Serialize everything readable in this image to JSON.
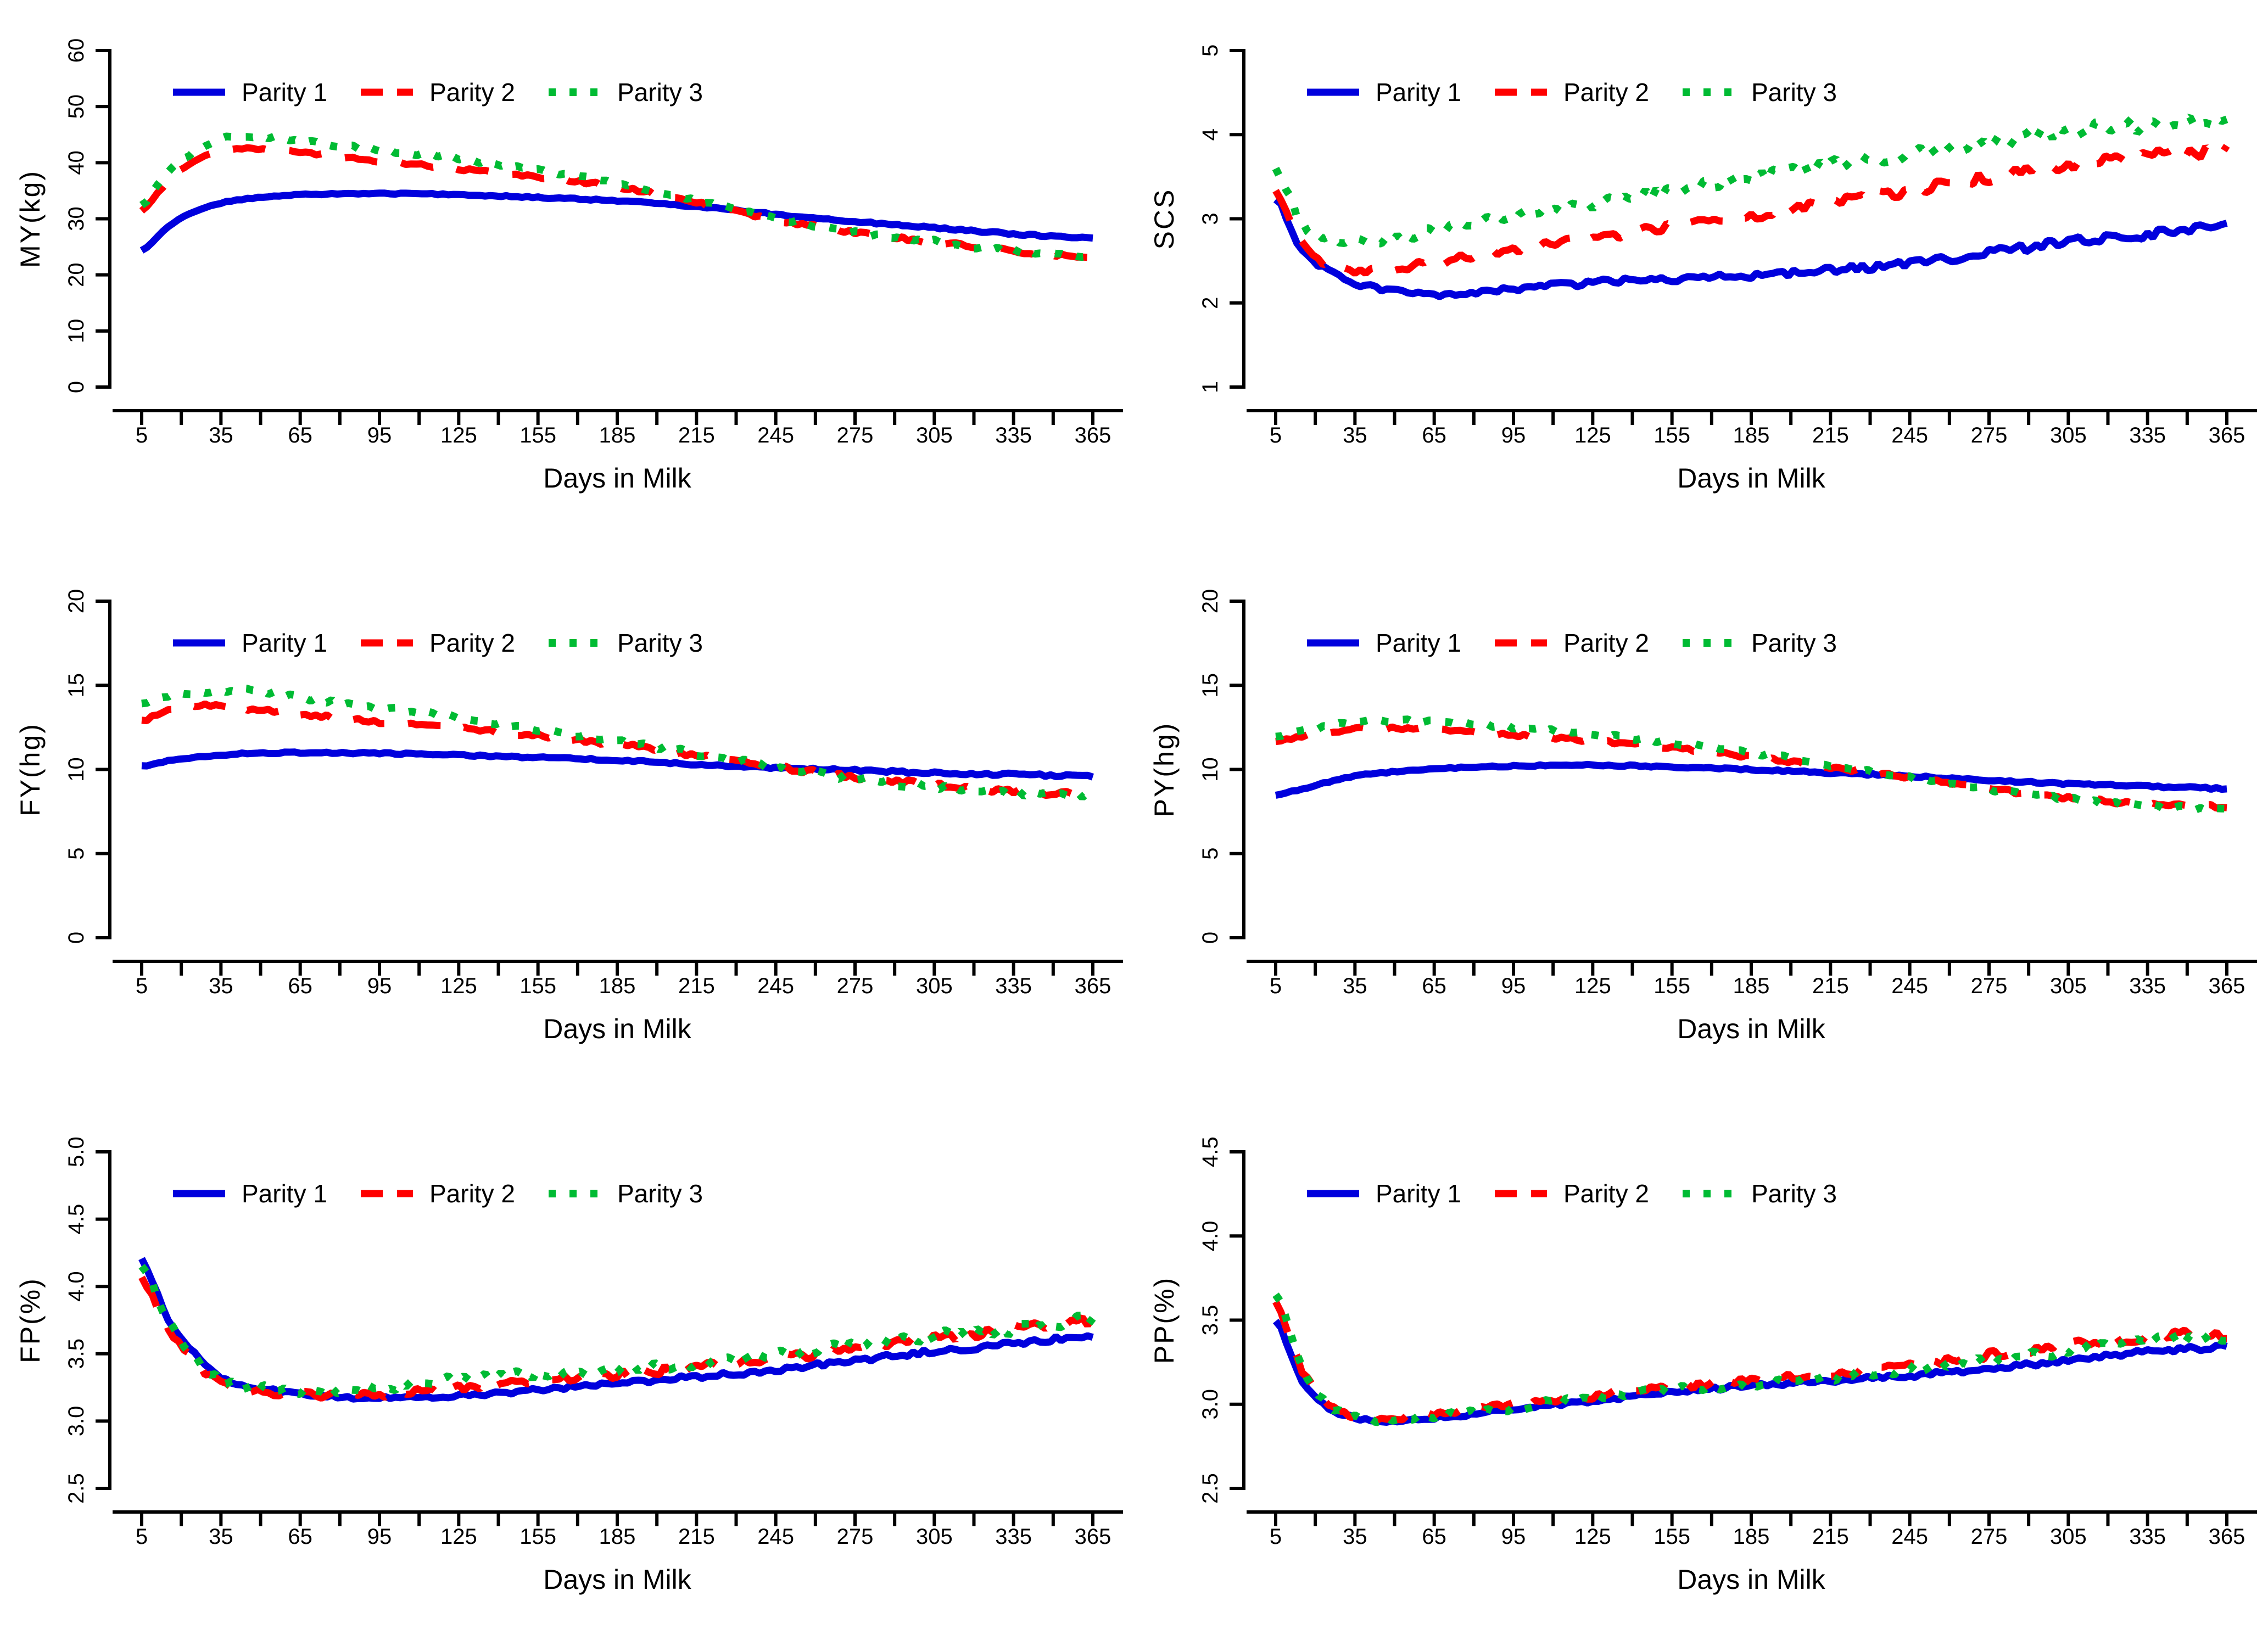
{
  "page": {
    "background": "#ffffff"
  },
  "colors": {
    "parity1": "#0000dd",
    "parity2": "#ff0000",
    "parity3": "#00bb33",
    "axis": "#000000",
    "text": "#000000"
  },
  "legend": {
    "labels": [
      "Parity 1",
      "Parity 2",
      "Parity 3"
    ],
    "position": "top-left-inside"
  },
  "chart_data": [
    {
      "id": "MY",
      "type": "line",
      "title": "",
      "xlabel": "Days in Milk",
      "ylabel": "MY(kg)",
      "ylim": [
        0,
        60
      ],
      "yticks": [
        "0",
        "10",
        "20",
        "30",
        "40",
        "50",
        "60"
      ],
      "x_axis": {
        "range": [
          5,
          365
        ],
        "major_ticks": [
          5,
          35,
          65,
          95,
          125,
          155,
          185,
          215,
          245,
          275,
          305,
          335,
          365
        ],
        "minor_step": 15
      },
      "grid": false,
      "x_points": [
        5,
        15,
        25,
        35,
        45,
        65,
        95,
        125,
        155,
        185,
        215,
        245,
        275,
        305,
        335,
        365
      ],
      "series": [
        {
          "name": "Parity 1",
          "color_key": "parity1",
          "style": "solid",
          "values": [
            24.3,
            28.6,
            31.3,
            32.8,
            33.6,
            34.3,
            34.5,
            34.3,
            33.8,
            33.2,
            32.2,
            30.8,
            29.5,
            28.4,
            27.3,
            26.6
          ],
          "noise": [
            0.08,
            0.18
          ]
        },
        {
          "name": "Parity 2",
          "color_key": "parity2",
          "style": "dashed",
          "values": [
            31.5,
            36.8,
            40.3,
            42.2,
            42.5,
            41.8,
            40.3,
            38.9,
            37.4,
            35.7,
            32.9,
            29.8,
            27.6,
            25.8,
            24.3,
            23.2
          ],
          "noise": [
            0.2,
            0.4
          ]
        },
        {
          "name": "Parity 3",
          "color_key": "parity3",
          "style": "dotted",
          "values": [
            32.5,
            38.3,
            42.0,
            44.2,
            44.8,
            43.8,
            42.3,
            40.7,
            38.7,
            36.3,
            33.3,
            30.1,
            27.7,
            25.9,
            24.2,
            23.3
          ],
          "noise": [
            0.25,
            0.45
          ]
        }
      ]
    },
    {
      "id": "SCS",
      "type": "line",
      "title": "",
      "xlabel": "Days in Milk",
      "ylabel": "SCS",
      "ylim": [
        1,
        5
      ],
      "yticks": [
        "1",
        "2",
        "3",
        "4",
        "5"
      ],
      "x_axis": {
        "range": [
          5,
          365
        ],
        "major_ticks": [
          5,
          35,
          65,
          95,
          125,
          155,
          185,
          215,
          245,
          275,
          305,
          335,
          365
        ],
        "minor_step": 15
      },
      "grid": false,
      "x_points": [
        5,
        15,
        25,
        35,
        45,
        65,
        95,
        125,
        155,
        185,
        215,
        245,
        275,
        305,
        335,
        365
      ],
      "series": [
        {
          "name": "Parity 1",
          "color_key": "parity1",
          "style": "solid",
          "values": [
            3.25,
            2.62,
            2.38,
            2.24,
            2.16,
            2.1,
            2.17,
            2.24,
            2.29,
            2.33,
            2.39,
            2.47,
            2.59,
            2.72,
            2.82,
            2.93
          ],
          "noise": [
            0.025,
            0.06
          ]
        },
        {
          "name": "Parity 2",
          "color_key": "parity2",
          "style": "dashed",
          "values": [
            3.3,
            2.7,
            2.45,
            2.37,
            2.39,
            2.49,
            2.63,
            2.77,
            2.91,
            3.04,
            3.19,
            3.34,
            3.49,
            3.63,
            3.76,
            3.8
          ],
          "noise": [
            0.035,
            0.08
          ]
        },
        {
          "name": "Parity 3",
          "color_key": "parity3",
          "style": "dotted",
          "values": [
            3.6,
            2.95,
            2.78,
            2.76,
            2.74,
            2.87,
            3.03,
            3.18,
            3.33,
            3.49,
            3.63,
            3.76,
            3.9,
            4.04,
            4.12,
            4.18
          ],
          "noise": [
            0.05,
            0.1
          ]
        }
      ]
    },
    {
      "id": "FY",
      "type": "line",
      "title": "",
      "xlabel": "Days in Milk",
      "ylabel": "FY(hg)",
      "ylim": [
        0,
        20
      ],
      "yticks": [
        "0",
        "5",
        "10",
        "15",
        "20"
      ],
      "x_axis": {
        "range": [
          5,
          365
        ],
        "major_ticks": [
          5,
          35,
          65,
          95,
          125,
          155,
          185,
          215,
          245,
          275,
          305,
          335,
          365
        ],
        "minor_step": 15
      },
      "grid": false,
      "x_points": [
        5,
        15,
        25,
        35,
        45,
        65,
        95,
        125,
        155,
        185,
        215,
        245,
        275,
        305,
        335,
        365
      ],
      "series": [
        {
          "name": "Parity 1",
          "color_key": "parity1",
          "style": "solid",
          "values": [
            10.2,
            10.5,
            10.7,
            10.85,
            10.95,
            11.0,
            10.95,
            10.85,
            10.7,
            10.55,
            10.3,
            10.1,
            9.95,
            9.8,
            9.7,
            9.6
          ],
          "noise": [
            0.04,
            0.08
          ]
        },
        {
          "name": "Parity 2",
          "color_key": "parity2",
          "style": "dashed",
          "values": [
            12.9,
            13.5,
            13.8,
            13.75,
            13.6,
            13.3,
            12.8,
            12.45,
            12.0,
            11.5,
            10.85,
            10.15,
            9.55,
            9.1,
            8.7,
            8.5
          ],
          "noise": [
            0.1,
            0.16
          ]
        },
        {
          "name": "Parity 3",
          "color_key": "parity3",
          "style": "dotted",
          "values": [
            13.9,
            14.4,
            14.55,
            14.65,
            14.7,
            14.25,
            13.65,
            13.1,
            12.4,
            11.7,
            10.95,
            10.15,
            9.45,
            8.95,
            8.6,
            8.5
          ],
          "noise": [
            0.12,
            0.18
          ]
        }
      ]
    },
    {
      "id": "PY",
      "type": "line",
      "title": "",
      "xlabel": "Days in Milk",
      "ylabel": "PY(hg)",
      "ylim": [
        0,
        20
      ],
      "yticks": [
        "0",
        "5",
        "10",
        "15",
        "20"
      ],
      "x_axis": {
        "range": [
          5,
          365
        ],
        "major_ticks": [
          5,
          35,
          65,
          95,
          125,
          155,
          185,
          215,
          245,
          275,
          305,
          335,
          365
        ],
        "minor_step": 15
      },
      "grid": false,
      "x_points": [
        5,
        15,
        25,
        35,
        45,
        65,
        95,
        125,
        155,
        185,
        215,
        245,
        275,
        305,
        335,
        365
      ],
      "series": [
        {
          "name": "Parity 1",
          "color_key": "parity1",
          "style": "solid",
          "values": [
            8.5,
            8.85,
            9.25,
            9.6,
            9.8,
            10.05,
            10.2,
            10.25,
            10.15,
            10.0,
            9.8,
            9.6,
            9.35,
            9.15,
            9.0,
            8.85
          ],
          "noise": [
            0.04,
            0.07
          ]
        },
        {
          "name": "Parity 2",
          "color_key": "parity2",
          "style": "dashed",
          "values": [
            11.7,
            11.95,
            12.2,
            12.4,
            12.45,
            12.4,
            12.05,
            11.7,
            11.3,
            10.75,
            10.15,
            9.5,
            8.85,
            8.3,
            7.95,
            7.8
          ],
          "noise": [
            0.08,
            0.12
          ]
        },
        {
          "name": "Parity 3",
          "color_key": "parity3",
          "style": "dotted",
          "values": [
            12.0,
            12.3,
            12.6,
            12.8,
            12.9,
            12.85,
            12.5,
            12.1,
            11.6,
            11.0,
            10.3,
            9.55,
            8.8,
            8.25,
            7.85,
            7.55
          ],
          "noise": [
            0.09,
            0.14
          ]
        }
      ]
    },
    {
      "id": "FP",
      "type": "line",
      "title": "",
      "xlabel": "Days in Milk",
      "ylabel": "FP(%)",
      "ylim": [
        2.5,
        5.0
      ],
      "yticks": [
        "2.5",
        "3.0",
        "3.5",
        "4.0",
        "4.5",
        "5.0"
      ],
      "x_axis": {
        "range": [
          5,
          365
        ],
        "major_ticks": [
          5,
          35,
          65,
          95,
          125,
          155,
          185,
          215,
          245,
          275,
          305,
          335,
          365
        ],
        "minor_step": 15
      },
      "grid": false,
      "x_points": [
        5,
        15,
        25,
        35,
        45,
        65,
        95,
        125,
        155,
        185,
        215,
        245,
        275,
        305,
        335,
        365
      ],
      "series": [
        {
          "name": "Parity 1",
          "color_key": "parity1",
          "style": "solid",
          "values": [
            4.2,
            3.76,
            3.5,
            3.33,
            3.26,
            3.2,
            3.17,
            3.19,
            3.23,
            3.28,
            3.33,
            3.38,
            3.45,
            3.52,
            3.57,
            3.64
          ],
          "noise": [
            0.012,
            0.022
          ]
        },
        {
          "name": "Parity 2",
          "color_key": "parity2",
          "style": "dashed",
          "values": [
            4.06,
            3.7,
            3.44,
            3.29,
            3.23,
            3.2,
            3.2,
            3.25,
            3.3,
            3.35,
            3.4,
            3.46,
            3.55,
            3.62,
            3.68,
            3.74
          ],
          "noise": [
            0.025,
            0.04
          ]
        },
        {
          "name": "Parity 3",
          "color_key": "parity3",
          "style": "dotted",
          "values": [
            4.15,
            3.74,
            3.47,
            3.3,
            3.25,
            3.22,
            3.24,
            3.31,
            3.35,
            3.38,
            3.43,
            3.49,
            3.57,
            3.63,
            3.68,
            3.75
          ],
          "noise": [
            0.03,
            0.045
          ]
        }
      ]
    },
    {
      "id": "PP",
      "type": "line",
      "title": "",
      "xlabel": "Days in Milk",
      "ylabel": "PP(%)",
      "ylim": [
        2.5,
        4.5
      ],
      "yticks": [
        "2.5",
        "3.0",
        "3.5",
        "4.0",
        "4.5"
      ],
      "x_axis": {
        "range": [
          5,
          365
        ],
        "major_ticks": [
          5,
          35,
          65,
          95,
          125,
          155,
          185,
          215,
          245,
          275,
          305,
          335,
          365
        ],
        "minor_step": 15
      },
      "grid": false,
      "x_points": [
        5,
        15,
        25,
        35,
        45,
        65,
        95,
        125,
        155,
        185,
        215,
        245,
        275,
        305,
        335,
        365
      ],
      "series": [
        {
          "name": "Parity 1",
          "color_key": "parity1",
          "style": "solid",
          "values": [
            3.5,
            3.14,
            2.98,
            2.92,
            2.9,
            2.92,
            2.97,
            3.02,
            3.07,
            3.11,
            3.14,
            3.17,
            3.21,
            3.26,
            3.31,
            3.34
          ],
          "noise": [
            0.008,
            0.016
          ]
        },
        {
          "name": "Parity 2",
          "color_key": "parity2",
          "style": "dashed",
          "values": [
            3.6,
            3.2,
            3.0,
            2.93,
            2.92,
            2.94,
            3.0,
            3.05,
            3.1,
            3.14,
            3.18,
            3.23,
            3.29,
            3.35,
            3.4,
            3.42
          ],
          "noise": [
            0.015,
            0.03
          ]
        },
        {
          "name": "Parity 3",
          "color_key": "parity3",
          "style": "dotted",
          "values": [
            3.65,
            3.22,
            3.0,
            2.92,
            2.91,
            2.93,
            2.98,
            3.04,
            3.09,
            3.12,
            3.16,
            3.21,
            3.26,
            3.32,
            3.38,
            3.4
          ],
          "noise": [
            0.018,
            0.032
          ]
        }
      ]
    }
  ]
}
